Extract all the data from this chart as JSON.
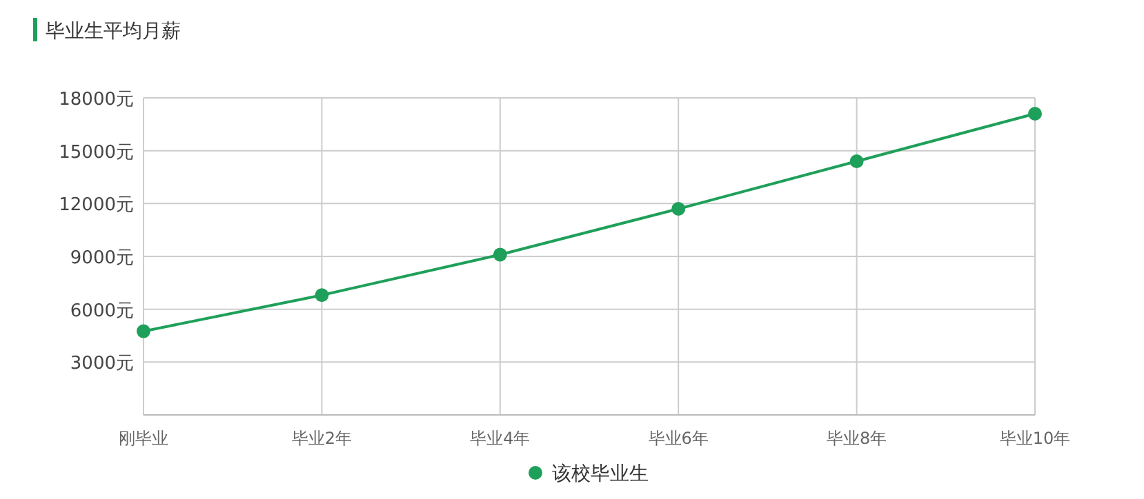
{
  "chart_data": {
    "type": "line",
    "title": "毕业生平均月薪",
    "categories": [
      "刚毕业",
      "毕业2年",
      "毕业4年",
      "毕业6年",
      "毕业8年",
      "毕业10年"
    ],
    "series": [
      {
        "name": "该校毕业生",
        "color": "#1fa05a",
        "values": [
          4750,
          6800,
          9100,
          11700,
          14400,
          17100
        ]
      }
    ],
    "ylim": [
      0,
      18000
    ],
    "yticks": [
      {
        "value": 0,
        "label": null
      },
      {
        "value": 3000,
        "label": "3000元"
      },
      {
        "value": 6000,
        "label": "6000元"
      },
      {
        "value": 9000,
        "label": "9000元"
      },
      {
        "value": 12000,
        "label": "12000元"
      },
      {
        "value": 15000,
        "label": "15000元"
      },
      {
        "value": 18000,
        "label": "18000元"
      }
    ],
    "grid": true,
    "legend": "bottom",
    "marker": "circle",
    "line_style": "solid"
  }
}
